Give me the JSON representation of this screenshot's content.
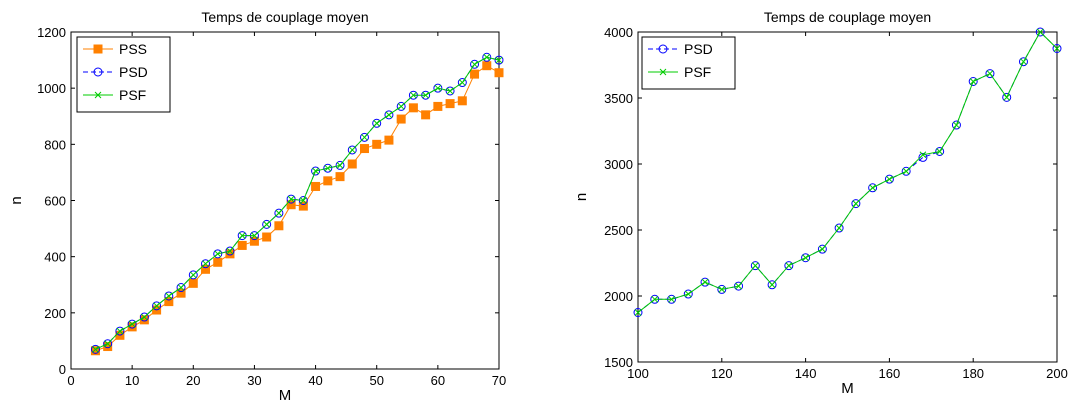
{
  "chart_data": [
    {
      "type": "line",
      "title": "Temps de couplage moyen",
      "xlabel": "M",
      "ylabel": "n",
      "xlim": [
        0,
        70
      ],
      "ylim": [
        0,
        1200
      ],
      "xticks": [
        "0",
        "10",
        "20",
        "30",
        "40",
        "50",
        "60",
        "70"
      ],
      "yticks": [
        "0",
        "200",
        "400",
        "600",
        "800",
        "1000",
        "1200"
      ],
      "xtick_values": [
        0,
        10,
        20,
        30,
        40,
        50,
        60,
        70
      ],
      "ytick_values": [
        0,
        200,
        400,
        600,
        800,
        1000,
        1200
      ],
      "grid": false,
      "legend_position": "top-left",
      "x": [
        4,
        6,
        8,
        10,
        12,
        14,
        16,
        18,
        20,
        22,
        24,
        26,
        28,
        30,
        32,
        34,
        36,
        38,
        40,
        42,
        44,
        46,
        48,
        50,
        52,
        54,
        56,
        58,
        60,
        62,
        64,
        66,
        68,
        70
      ],
      "series": [
        {
          "name": "PSS",
          "color": "#FF8000",
          "marker": "square",
          "values": [
            65,
            80,
            120,
            150,
            175,
            210,
            240,
            270,
            305,
            355,
            380,
            410,
            440,
            455,
            470,
            510,
            585,
            580,
            650,
            670,
            685,
            730,
            785,
            800,
            815,
            890,
            930,
            905,
            935,
            945,
            955,
            1050,
            1080,
            1055
          ]
        },
        {
          "name": "PSD",
          "color": "#0000FF",
          "marker": "circle",
          "dashed": true,
          "values": [
            70,
            90,
            135,
            160,
            185,
            225,
            260,
            290,
            335,
            375,
            410,
            420,
            475,
            475,
            515,
            555,
            605,
            600,
            705,
            715,
            725,
            780,
            825,
            875,
            905,
            935,
            975,
            975,
            1000,
            990,
            1020,
            1085,
            1110,
            1100
          ]
        },
        {
          "name": "PSF",
          "color": "#00CC00",
          "marker": "x",
          "values": [
            70,
            90,
            135,
            160,
            185,
            225,
            260,
            290,
            335,
            375,
            410,
            420,
            475,
            475,
            515,
            555,
            605,
            600,
            705,
            715,
            725,
            780,
            825,
            875,
            905,
            935,
            975,
            975,
            1000,
            990,
            1020,
            1085,
            1110,
            1100
          ]
        }
      ]
    },
    {
      "type": "line",
      "title": "Temps de couplage moyen",
      "xlabel": "M",
      "ylabel": "n",
      "xlim": [
        100,
        200
      ],
      "ylim": [
        1500,
        4000
      ],
      "xticks": [
        "100",
        "120",
        "140",
        "160",
        "180",
        "200"
      ],
      "yticks": [
        "1500",
        "2000",
        "2500",
        "3000",
        "3500",
        "4000"
      ],
      "xtick_values": [
        100,
        120,
        140,
        160,
        180,
        200
      ],
      "ytick_values": [
        1500,
        2000,
        2500,
        3000,
        3500,
        4000
      ],
      "grid": false,
      "legend_position": "top-left",
      "x": [
        100,
        104,
        108,
        112,
        116,
        120,
        124,
        128,
        132,
        136,
        140,
        144,
        148,
        152,
        156,
        160,
        164,
        168,
        172,
        176,
        180,
        184,
        188,
        192,
        196,
        200
      ],
      "series": [
        {
          "name": "PSD",
          "color": "#0000FF",
          "marker": "circle",
          "dashed": true,
          "values": [
            1875,
            1975,
            1975,
            2015,
            2105,
            2050,
            2075,
            2230,
            2085,
            2230,
            2290,
            2355,
            2515,
            2700,
            2820,
            2885,
            2945,
            3050,
            3095,
            3295,
            3625,
            3685,
            3505,
            3775,
            4000,
            3875
          ]
        },
        {
          "name": "PSF",
          "color": "#00CC00",
          "marker": "x",
          "values": [
            1875,
            1975,
            1975,
            2015,
            2105,
            2050,
            2075,
            2230,
            2085,
            2230,
            2290,
            2355,
            2515,
            2700,
            2820,
            2885,
            2945,
            3070,
            3095,
            3295,
            3625,
            3685,
            3505,
            3775,
            4000,
            3875
          ]
        }
      ]
    }
  ]
}
